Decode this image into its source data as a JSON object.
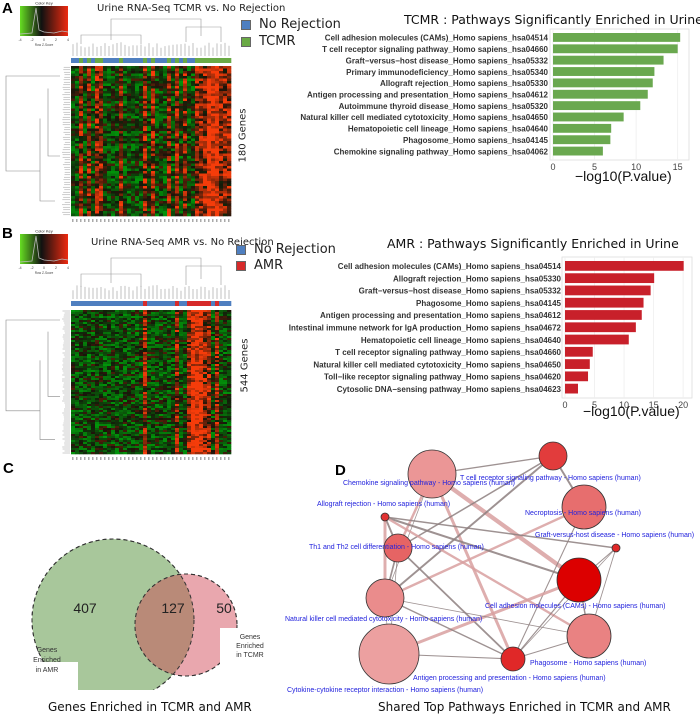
{
  "panels": {
    "A": {
      "letter": "A",
      "heatmap_title": "Urine RNA-Seq TCMR vs. No Rejection",
      "color_key_title": "Color Key",
      "color_key_xlabel": "Row Z-Score",
      "color_key_ylabel": "Count",
      "color_key_ticks": [
        "-4",
        "-2",
        "0",
        "2",
        "4"
      ],
      "legend": [
        {
          "label": "No Rejection",
          "color": "#4f7fc0"
        },
        {
          "label": "TCMR",
          "color": "#6aaa45"
        }
      ],
      "genes_label": "180 Genes",
      "sample_groups": [
        "N",
        "N",
        "T",
        "N",
        "T",
        "N",
        "T",
        "T",
        "N",
        "N",
        "N",
        "N",
        "T",
        "N",
        "N",
        "N",
        "N",
        "N",
        "T",
        "N",
        "T",
        "N",
        "N",
        "N",
        "T",
        "N",
        "T",
        "N",
        "T",
        "N",
        "N",
        "T",
        "T",
        "T",
        "T",
        "T",
        "T",
        "T",
        "T",
        "T"
      ]
    },
    "B": {
      "letter": "B",
      "heatmap_title": "Urine RNA-Seq AMR  vs. No Rejection",
      "color_key_title": "Color Key",
      "color_key_xlabel": "Row Z-Score",
      "color_key_ylabel": "Count",
      "color_key_ticks": [
        "-4",
        "-2",
        "0",
        "2",
        "4"
      ],
      "legend": [
        {
          "label": "No Rejection",
          "color": "#4f7fc0"
        },
        {
          "label": "AMR",
          "color": "#d62a2a"
        }
      ],
      "genes_label": "544 Genes",
      "sample_groups": [
        "N",
        "N",
        "N",
        "N",
        "N",
        "N",
        "N",
        "N",
        "N",
        "N",
        "N",
        "N",
        "N",
        "N",
        "N",
        "N",
        "N",
        "N",
        "A",
        "N",
        "N",
        "N",
        "N",
        "N",
        "N",
        "N",
        "A",
        "N",
        "N",
        "A",
        "A",
        "A",
        "A",
        "A",
        "A",
        "N",
        "A",
        "N",
        "N",
        "N"
      ]
    },
    "C": {
      "letter": "C",
      "venn": {
        "left_label": [
          "Genes",
          "Enriched",
          "in AMR"
        ],
        "right_label": [
          "Genes",
          "Enriched",
          "in TCMR"
        ],
        "left_only": "407",
        "overlap": "127",
        "right_only": "50",
        "left_color": "#a8c79b",
        "right_color": "#e9a7ae",
        "overlap_color": "#b98a78"
      },
      "caption": "Genes Enriched in TCMR and AMR"
    },
    "D": {
      "letter": "D",
      "caption": "Shared Top Pathways Enriched in TCMR and AMR",
      "nodes": [
        {
          "id": "n_topleft",
          "label": "",
          "shade": 0.25
        },
        {
          "id": "n_tcell",
          "label": "T cell receptor signaling pathway - Homo sapiens (human)",
          "shade": 0.7
        },
        {
          "id": "n_necro",
          "label": "Necroptosis - Homo sapiens (human)",
          "shade": 0.45
        },
        {
          "id": "n_chemo",
          "label": "Chemokine signaling pathway - Homo sapiens (human)",
          "shade": 0.75
        },
        {
          "id": "n_allo",
          "label": "Allograft rejection - Homo sapiens (human)",
          "shade": 0.5
        },
        {
          "id": "n_gvhd",
          "label": "Graft-versus-host disease - Homo sapiens (human)",
          "shade": 0.8
        },
        {
          "id": "n_cam",
          "label": "Cell adhesion molecules (CAMs) - Homo sapiens (human)",
          "shade": 1.0
        },
        {
          "id": "n_th",
          "label": "Th1 and Th2 cell differentiation - Homo sapiens (human)",
          "shade": 0.3
        },
        {
          "id": "n_nk",
          "label": "Natural killer cell mediated cytotoxicity - Homo sapiens (human)",
          "shade": 0.35
        },
        {
          "id": "n_cyto",
          "label": "Cytokine-cytokine receptor interaction - Homo sapiens (human)",
          "shade": 0.2
        },
        {
          "id": "n_phago",
          "label": "Phagosome - Homo sapiens (human)",
          "shade": 0.8
        },
        {
          "id": "n_antigen",
          "label": "Antigen processing and presentation - Homo sapiens (human)",
          "shade": 0.45
        }
      ]
    }
  },
  "chart_data": [
    {
      "type": "bar",
      "orientation": "horizontal",
      "title": "TCMR  : Pathways Significantly Enriched in Urine",
      "xlabel": "−log10(P.value)",
      "ylabel": "",
      "xlim": [
        0,
        16
      ],
      "xticks": [
        "0",
        "5",
        "10",
        "15"
      ],
      "grid": true,
      "color": "#6aa84f",
      "categories": [
        "Cell adhesion molecules (CAMs)_Homo sapiens_hsa04514",
        "T cell receptor signaling pathway_Homo sapiens_hsa04660",
        "Graft−versus−host disease_Homo sapiens_hsa05332",
        "Primary immunodeficiency_Homo sapiens_hsa05340",
        "Allograft rejection_Homo sapiens_hsa05330",
        "Antigen processing and presentation_Homo sapiens_hsa04612",
        "Autoimmune thyroid disease_Homo sapiens_hsa05320",
        "Natural killer cell mediated cytotoxicity_Homo sapiens_hsa04650",
        "Hematopoietic cell lineage_Homo sapiens_hsa04640",
        "Phagosome_Homo sapiens_hsa04145",
        "Chemokine signaling pathway_Homo sapiens_hsa04062"
      ],
      "values": [
        15.3,
        15.0,
        13.3,
        12.2,
        12.0,
        11.4,
        10.5,
        8.5,
        7.0,
        6.9,
        6.0
      ]
    },
    {
      "type": "bar",
      "orientation": "horizontal",
      "title": "AMR : Pathways Significantly Enriched in Urine",
      "xlabel": "−log10(P.value)",
      "ylabel": "",
      "xlim": [
        0,
        21
      ],
      "xticks": [
        "0",
        "5",
        "10",
        "15",
        "20"
      ],
      "grid": true,
      "color": "#c8202a",
      "categories": [
        "Cell adhesion molecules (CAMs)_Homo sapiens_hsa04514",
        "Allograft rejection_Homo sapiens_hsa05330",
        "Graft−versus−host disease_Homo sapiens_hsa05332",
        "Phagosome_Homo sapiens_hsa04145",
        "Antigen processing and presentation_Homo sapiens_hsa04612",
        "Intestinal immune network for IgA production_Homo sapiens_hsa04672",
        "Hematopoietic cell lineage_Homo sapiens_hsa04640",
        "T cell receptor signaling pathway_Homo sapiens_hsa04660",
        "Natural killer cell mediated cytotoxicity_Homo sapiens_hsa04650",
        "Toll−like receptor signaling pathway_Homo sapiens_hsa04620",
        "Cytosolic DNA−sensing pathway_Homo sapiens_hsa04623"
      ],
      "values": [
        20.1,
        15.1,
        14.5,
        13.3,
        13.0,
        12.0,
        10.8,
        4.7,
        4.2,
        3.9,
        2.2
      ]
    }
  ]
}
